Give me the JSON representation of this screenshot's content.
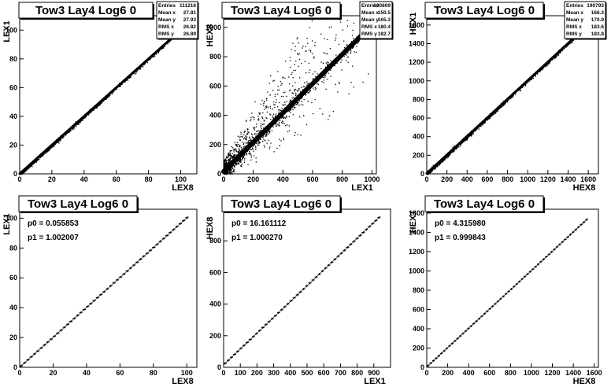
{
  "figure": {
    "background": "#ffffff",
    "ink": "#000000"
  },
  "chart_data": [
    {
      "type": "scatter",
      "title": "Tow3 Lay4 Log6 0",
      "xlabel": "LEX8",
      "ylabel": "LEX1",
      "xlim": [
        0,
        110
      ],
      "ylim": [
        0,
        110
      ],
      "xticks": [
        0,
        20,
        40,
        60,
        80,
        100
      ],
      "yticks": [
        0,
        20,
        40,
        60,
        80,
        100
      ],
      "stats": [
        [
          "Entries",
          "111216"
        ],
        [
          "Mean x",
          "27.81"
        ],
        [
          "Mean y",
          "27.93"
        ],
        [
          "RMS x",
          "26.82"
        ],
        [
          "RMS y",
          "26.89"
        ]
      ],
      "relation": {
        "slope": 1.0,
        "intercept": 0.05,
        "x_range": [
          0,
          102
        ]
      },
      "scatter_noise": 0.6,
      "outlier_fraction": 0.0
    },
    {
      "type": "scatter",
      "title": "Tow3 Lay4 Log6 0",
      "xlabel": "LEX1",
      "ylabel": "HEX8",
      "xlim": [
        0,
        1030
      ],
      "ylim": [
        0,
        1080
      ],
      "xticks": [
        0,
        200,
        400,
        600,
        800,
        1000
      ],
      "yticks": [
        0,
        200,
        400,
        600,
        800,
        1000
      ],
      "stats": [
        [
          "Entries",
          "190809"
        ],
        [
          "Mean x",
          "150.5"
        ],
        [
          "Mean y",
          "165.3"
        ],
        [
          "RMS x",
          "180.4"
        ],
        [
          "RMS y",
          "182.7"
        ]
      ],
      "relation": {
        "slope": 1.0,
        "intercept": 16,
        "x_range": [
          0,
          1000
        ]
      },
      "scatter_noise": 25,
      "outlier_fraction": 0.35
    },
    {
      "type": "scatter",
      "title": "Tow3 Lay4 Log6 0",
      "xlabel": "HEX8",
      "ylabel": "HEX1",
      "xlim": [
        0,
        1700
      ],
      "ylim": [
        0,
        1700
      ],
      "xticks": [
        0,
        200,
        400,
        600,
        800,
        1000,
        1200,
        1400,
        1600
      ],
      "yticks": [
        0,
        200,
        400,
        600,
        800,
        1000,
        1200,
        1400,
        1600
      ],
      "stats": [
        [
          "Entries",
          "190793"
        ],
        [
          "Mean x",
          "166.3"
        ],
        [
          "Mean y",
          "170.9"
        ],
        [
          "RMS x",
          "183.6"
        ],
        [
          "RMS y",
          "183.8"
        ]
      ],
      "relation": {
        "slope": 1.0,
        "intercept": 4,
        "x_range": [
          0,
          1450
        ]
      },
      "scatter_noise": 10,
      "outlier_fraction": 0.0
    },
    {
      "type": "line",
      "title": "Tow3 Lay4 Log6 0",
      "xlabel": "LEX8",
      "ylabel": "LEX1",
      "xlim": [
        0,
        106
      ],
      "ylim": [
        0,
        106
      ],
      "xticks": [
        0,
        20,
        40,
        60,
        80,
        100
      ],
      "yticks": [
        0,
        20,
        40,
        60,
        80,
        100
      ],
      "fit": {
        "p0": "0.055853",
        "p1": "1.002007"
      },
      "relation": {
        "slope": 1.002007,
        "intercept": 0.055853,
        "x_range": [
          0,
          101
        ]
      },
      "steps": 51
    },
    {
      "type": "line",
      "title": "Tow3 Lay4 Log6 0",
      "xlabel": "LEX1",
      "ylabel": "HEX8",
      "xlim": [
        0,
        1000
      ],
      "ylim": [
        0,
        1000
      ],
      "xticks": [
        0,
        100,
        200,
        300,
        400,
        500,
        600,
        700,
        800,
        900
      ],
      "yticks": [
        0,
        200,
        400,
        600,
        800
      ],
      "fit": {
        "p0": "16.161112",
        "p1": "1.000270"
      },
      "relation": {
        "slope": 1.00027,
        "intercept": 16.161112,
        "x_range": [
          0,
          940
        ]
      },
      "steps": 50
    },
    {
      "type": "line",
      "title": "Tow3 Lay4 Log6 0",
      "xlabel": "HEX8",
      "ylabel": "HEX1",
      "xlim": [
        0,
        1640
      ],
      "ylim": [
        0,
        1640
      ],
      "xticks": [
        0,
        200,
        400,
        600,
        800,
        1000,
        1200,
        1400,
        1600
      ],
      "yticks": [
        0,
        200,
        400,
        600,
        800,
        1000,
        1200,
        1400,
        1600
      ],
      "fit": {
        "p0": "4.315980",
        "p1": "0.999843"
      },
      "relation": {
        "slope": 0.999843,
        "intercept": 4.31598,
        "x_range": [
          0,
          1540
        ]
      },
      "steps": 60
    }
  ]
}
